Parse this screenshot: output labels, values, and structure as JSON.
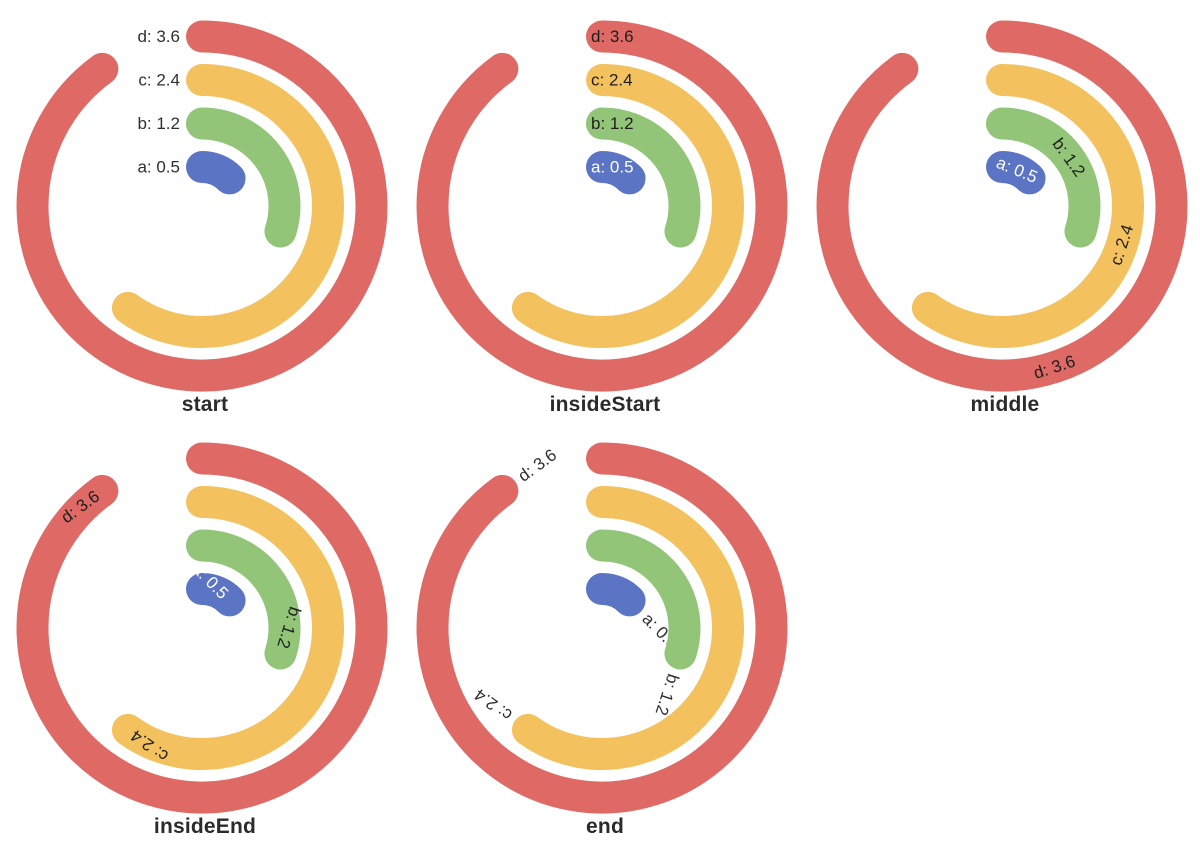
{
  "chart_data": {
    "type": "bar",
    "subtype": "polar-radial-bar",
    "layout_hint": "bars sweep clockwise from 12 o'clock, rounded caps, no axes or grid shown",
    "categories": [
      "a",
      "b",
      "c",
      "d"
    ],
    "values": [
      0.5,
      1.2,
      2.4,
      3.6
    ],
    "radial_max": 4,
    "bar_sweep_degrees": [
      45,
      108,
      216,
      324
    ],
    "bar_colors": [
      "#5b74c4",
      "#92c577",
      "#f3c15e",
      "#de6965"
    ],
    "bar_labels": [
      "a: 0.5",
      "b: 1.2",
      "c: 2.4",
      "d: 3.6"
    ],
    "charts": [
      {
        "title": "start",
        "label_position": "start"
      },
      {
        "title": "insideStart",
        "label_position": "insideStart"
      },
      {
        "title": "middle",
        "label_position": "middle"
      },
      {
        "title": "insideEnd",
        "label_position": "insideEnd"
      },
      {
        "title": "end",
        "label_position": "end"
      }
    ],
    "styles": {
      "outside_label_color": "#2f2f2f",
      "inside_label_dark": "#1e1e1e",
      "inside_label_light": "#ffffff",
      "title_color": "#2b2b2b",
      "background": "#ffffff"
    }
  }
}
